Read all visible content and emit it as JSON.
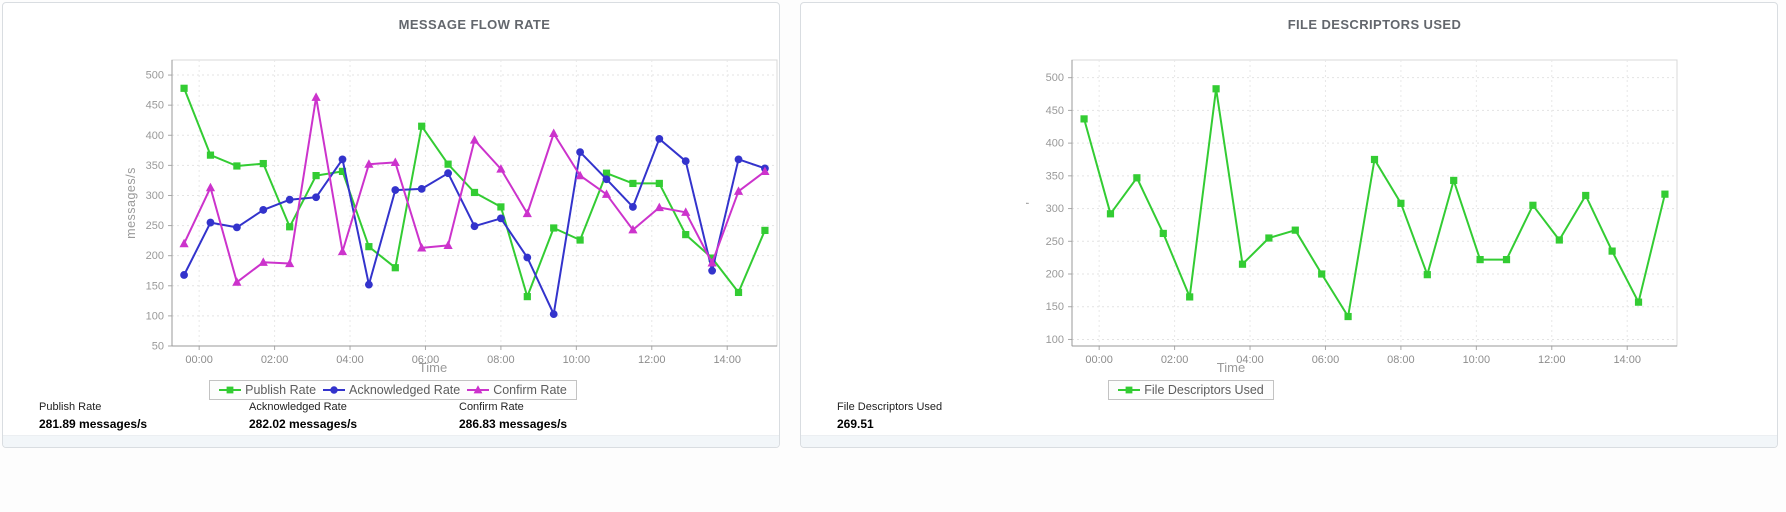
{
  "chart_data": [
    {
      "type": "line",
      "title": "MESSAGE FLOW RATE",
      "xlabel": "Time",
      "ylabel": "messages/s",
      "ylim": [
        50,
        525
      ],
      "yticks": [
        50,
        100,
        150,
        200,
        250,
        300,
        350,
        400,
        450,
        500
      ],
      "xlim": [
        -0.72,
        15.32
      ],
      "xticks": [
        {
          "h": 0,
          "label": "00:00"
        },
        {
          "h": 2,
          "label": "02:00"
        },
        {
          "h": 4,
          "label": "04:00"
        },
        {
          "h": 6,
          "label": "06:00"
        },
        {
          "h": 8,
          "label": "08:00"
        },
        {
          "h": 10,
          "label": "10:00"
        },
        {
          "h": 12,
          "label": "12:00"
        },
        {
          "h": 14,
          "label": "14:00"
        }
      ],
      "x_hours": [
        -0.4,
        0.3,
        1.0,
        1.7,
        2.4,
        3.1,
        3.8,
        4.5,
        5.2,
        5.9,
        6.6,
        7.3,
        8.0,
        8.7,
        9.4,
        10.1,
        10.8,
        11.5,
        12.2,
        12.9,
        13.6,
        14.3,
        15.0
      ],
      "grid": true,
      "legend_position": "bottom",
      "series": [
        {
          "name": "Publish Rate",
          "color": "#33cc33",
          "marker": "square",
          "values": [
            478,
            367,
            349,
            353,
            248,
            333,
            340,
            215,
            180,
            415,
            352,
            305,
            281,
            132,
            246,
            226,
            337,
            320,
            320,
            235,
            196,
            139,
            242
          ]
        },
        {
          "name": "Acknowledged Rate",
          "color": "#3333cc",
          "marker": "circle",
          "values": [
            168,
            255,
            247,
            276,
            293,
            297,
            360,
            152,
            309,
            311,
            337,
            249,
            262,
            197,
            103,
            372,
            327,
            281,
            394,
            357,
            175,
            360,
            345
          ]
        },
        {
          "name": "Confirm Rate",
          "color": "#cc33cc",
          "marker": "triangle",
          "values": [
            220,
            313,
            156,
            189,
            187,
            463,
            207,
            352,
            355,
            213,
            217,
            392,
            344,
            270,
            403,
            333,
            302,
            243,
            280,
            272,
            188,
            307,
            340
          ]
        }
      ],
      "stats": [
        {
          "label": "Publish Rate",
          "value": "281.89 messages/s"
        },
        {
          "label": "Acknowledged Rate",
          "value": "282.02 messages/s"
        },
        {
          "label": "Confirm Rate",
          "value": "286.83 messages/s"
        }
      ]
    },
    {
      "type": "line",
      "title": "FILE DESCRIPTORS USED",
      "xlabel": "Time",
      "ylabel": "'",
      "ylim": [
        90,
        527
      ],
      "yticks": [
        100,
        150,
        200,
        250,
        300,
        350,
        400,
        450,
        500
      ],
      "xlim": [
        -0.72,
        15.32
      ],
      "xticks": [
        {
          "h": 0,
          "label": "00:00"
        },
        {
          "h": 2,
          "label": "02:00"
        },
        {
          "h": 4,
          "label": "04:00"
        },
        {
          "h": 6,
          "label": "06:00"
        },
        {
          "h": 8,
          "label": "08:00"
        },
        {
          "h": 10,
          "label": "10:00"
        },
        {
          "h": 12,
          "label": "12:00"
        },
        {
          "h": 14,
          "label": "14:00"
        }
      ],
      "x_hours": [
        -0.4,
        0.3,
        1.0,
        1.7,
        2.4,
        3.1,
        3.8,
        4.5,
        5.2,
        5.9,
        6.6,
        7.3,
        8.0,
        8.7,
        9.4,
        10.1,
        10.8,
        11.5,
        12.2,
        12.9,
        13.6,
        14.3,
        15.0
      ],
      "grid": true,
      "legend_position": "bottom",
      "series": [
        {
          "name": "File Descriptors Used",
          "color": "#33cc33",
          "marker": "square",
          "values": [
            437,
            292,
            347,
            262,
            165,
            483,
            215,
            255,
            267,
            200,
            135,
            375,
            308,
            199,
            343,
            222,
            222,
            305,
            252,
            320,
            235,
            157,
            322
          ]
        }
      ],
      "stats": [
        {
          "label": "File Descriptors Used",
          "value": "269.51"
        }
      ]
    }
  ]
}
